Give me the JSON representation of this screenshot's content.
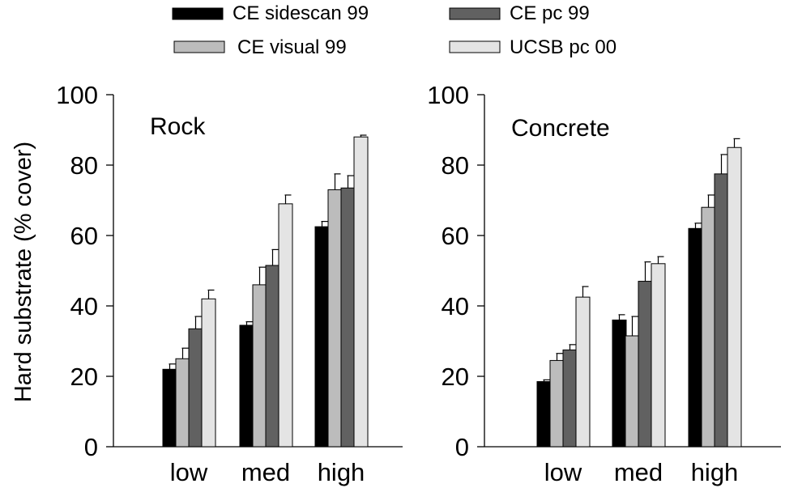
{
  "legend": {
    "placement": "top-center",
    "entries": [
      {
        "label": "CE sidescan 99",
        "color": "#000000"
      },
      {
        "label": "CE pc 99",
        "color": "#616161"
      },
      {
        "label": "CE visual 99",
        "color": "#bcbcbc"
      },
      {
        "label": "UCSB pc 00",
        "color": "#e4e4e4"
      }
    ]
  },
  "ylabel": "Hard substrate (% cover)",
  "chart_data": [
    {
      "type": "bar",
      "title": "Rock",
      "categories": [
        "low",
        "med",
        "high"
      ],
      "ylim": [
        0,
        100
      ],
      "yticks": [
        "0",
        "20",
        "40",
        "60",
        "80",
        "100"
      ],
      "series": [
        {
          "name": "CE sidescan 99",
          "color": "#000000",
          "values": [
            22,
            34.5,
            62.5
          ],
          "errors": [
            1.5,
            1,
            1.5
          ]
        },
        {
          "name": "CE visual 99",
          "color": "#bcbcbc",
          "values": [
            25,
            46,
            73
          ],
          "errors": [
            3,
            5,
            4.5
          ]
        },
        {
          "name": "CE pc 99",
          "color": "#616161",
          "values": [
            33.5,
            51.5,
            73.5
          ],
          "errors": [
            3.5,
            4.5,
            3.5
          ]
        },
        {
          "name": "UCSB pc 00",
          "color": "#e4e4e4",
          "values": [
            42,
            69,
            88
          ],
          "errors": [
            2.5,
            2.5,
            0.5
          ]
        }
      ]
    },
    {
      "type": "bar",
      "title": "Concrete",
      "categories": [
        "low",
        "med",
        "high"
      ],
      "ylim": [
        0,
        100
      ],
      "yticks": [
        "0",
        "20",
        "40",
        "60",
        "80",
        "100"
      ],
      "series": [
        {
          "name": "CE sidescan 99",
          "color": "#000000",
          "values": [
            18.5,
            36,
            62
          ],
          "errors": [
            0.5,
            1.5,
            1.5
          ]
        },
        {
          "name": "CE visual 99",
          "color": "#bcbcbc",
          "values": [
            24.5,
            31.5,
            68
          ],
          "errors": [
            2,
            5.5,
            3.5
          ]
        },
        {
          "name": "CE pc 99",
          "color": "#616161",
          "values": [
            27.5,
            47,
            77.5
          ],
          "errors": [
            1.5,
            5.5,
            5.5
          ]
        },
        {
          "name": "UCSB pc 00",
          "color": "#e4e4e4",
          "values": [
            42.5,
            52,
            85
          ],
          "errors": [
            3,
            2,
            2.5
          ]
        }
      ]
    }
  ]
}
